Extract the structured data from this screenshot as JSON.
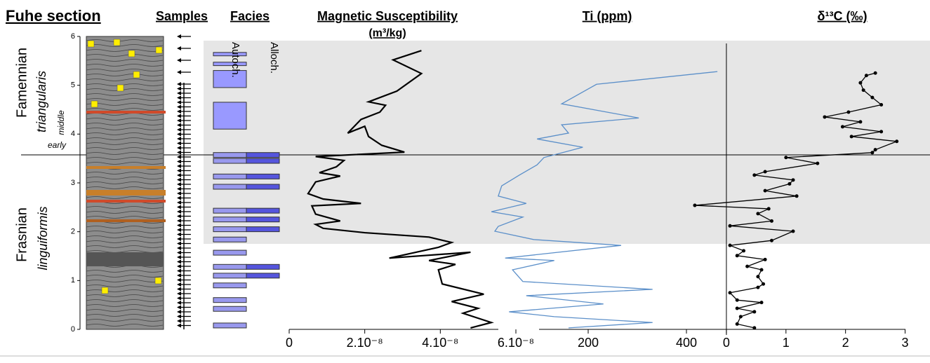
{
  "figure": {
    "title": "Fuhe section",
    "samples": "Samples",
    "facies": "Facies",
    "autoch": "Autoch.",
    "alloch": "Alloch.",
    "stages": [
      "Famennian",
      "Frasnian"
    ],
    "zones": [
      "triangularis",
      "linguiformis"
    ],
    "subzones": [
      "middle",
      "early"
    ]
  },
  "chart_data": [
    {
      "type": "profile",
      "title": "Magnetic Susceptibility",
      "subtitle": "(m³/kg)",
      "color": "#000000",
      "markers": false,
      "xlim": [
        0,
        6e-08
      ],
      "xticks": [
        0,
        {
          "value": 2e-08,
          "label": "2.10⁻⁸"
        },
        {
          "value": 4e-08,
          "label": "4.10⁻⁸"
        },
        {
          "value": 6e-08,
          "label": "6.10⁻⁸"
        }
      ],
      "ylim": [
        0,
        6
      ],
      "yticks": [
        0,
        1,
        2,
        3,
        4,
        5,
        6
      ],
      "y": [
        0.03,
        0.14,
        0.33,
        0.43,
        0.57,
        0.72,
        0.93,
        1.22,
        1.33,
        1.41,
        1.58,
        1.46,
        1.68,
        1.78,
        1.89,
        1.98,
        2.07,
        2.15,
        2.22,
        2.36,
        2.53,
        2.58,
        2.67,
        2.78,
        3.02,
        3.14,
        3.21,
        3.33,
        3.46,
        3.54,
        3.63,
        3.77,
        3.95,
        4.16,
        4.02,
        4.3,
        4.45,
        4.59,
        4.66,
        4.88,
        5.24,
        5.52,
        5.71
      ],
      "values": [
        4.8e-08,
        5.35e-08,
        4.6e-08,
        5e-08,
        4.3e-08,
        5.15e-08,
        4.05e-08,
        3.95e-08,
        4.4e-08,
        3.7e-08,
        4.8e-08,
        2.65e-08,
        3.95e-08,
        4.3e-08,
        3.7e-08,
        2e-08,
        9e-09,
        7e-09,
        1.35e-08,
        7e-09,
        6e-09,
        1.9e-08,
        9e-09,
        5e-09,
        7e-09,
        1.35e-08,
        8e-09,
        1.25e-08,
        1.45e-08,
        7e-09,
        3.05e-08,
        2.45e-08,
        2.1e-08,
        2e-08,
        1.55e-08,
        1.9e-08,
        2.4e-08,
        2.55e-08,
        2.1e-08,
        2.85e-08,
        3.5e-08,
        2.75e-08,
        3.5e-08
      ]
    },
    {
      "type": "profile",
      "title": "Ti (ppm)",
      "color": "#5b8fc9",
      "markers": false,
      "xlim": [
        0,
        470
      ],
      "xticks": [
        200,
        400
      ],
      "ylim": [
        0,
        6
      ],
      "y": [
        0.03,
        0.14,
        0.26,
        0.36,
        0.52,
        0.69,
        0.82,
        0.98,
        1.22,
        1.41,
        1.46,
        1.72,
        1.84,
        2.01,
        2.11,
        2.3,
        2.41,
        2.58,
        2.73,
        2.94,
        3.16,
        3.37,
        3.52,
        3.73,
        3.9,
        4.02,
        4.19,
        4.33,
        4.62,
        5.02,
        5.28
      ],
      "values": [
        160,
        331,
        131,
        39,
        231,
        74,
        331,
        67,
        46,
        131,
        31,
        267,
        89,
        10,
        17,
        67,
        3,
        74,
        17,
        24,
        60,
        96,
        110,
        189,
        96,
        160,
        146,
        303,
        146,
        217,
        463
      ]
    },
    {
      "type": "profile",
      "title": "δ¹³C (‰)",
      "color": "#000000",
      "markers": true,
      "xlim": [
        -0.6,
        3.3
      ],
      "xticks": [
        0,
        1,
        2,
        3
      ],
      "ylim": [
        0,
        6
      ],
      "y": [
        0.03,
        0.11,
        0.26,
        0.36,
        0.43,
        0.55,
        0.6,
        0.75,
        0.86,
        0.93,
        1.08,
        1.22,
        1.29,
        1.43,
        1.51,
        1.61,
        1.72,
        1.82,
        2.01,
        2.12,
        2.22,
        2.37,
        2.47,
        2.54,
        2.73,
        2.84,
        2.98,
        3.06,
        3.16,
        3.23,
        3.4,
        3.52,
        3.62,
        3.68,
        3.85,
        3.95,
        4.05,
        4.15,
        4.25,
        4.35,
        4.45,
        4.6,
        4.75,
        4.9,
        5.05,
        5.2,
        5.25
      ],
      "values": [
        0.47,
        0.18,
        0.24,
        0.47,
        0.18,
        0.59,
        0.18,
        0.06,
        0.53,
        0.62,
        0.53,
        0.59,
        0.35,
        0.65,
        0.18,
        0.29,
        0.06,
        0.76,
        1.12,
        0.06,
        0.76,
        0.53,
        0.71,
        -0.53,
        1.18,
        0.65,
        1.06,
        1.12,
        0.47,
        0.65,
        1.53,
        1.0,
        2.45,
        2.5,
        2.86,
        2.1,
        2.6,
        1.95,
        2.25,
        1.65,
        2.05,
        2.6,
        2.45,
        2.3,
        2.25,
        2.35,
        2.5
      ]
    }
  ]
}
